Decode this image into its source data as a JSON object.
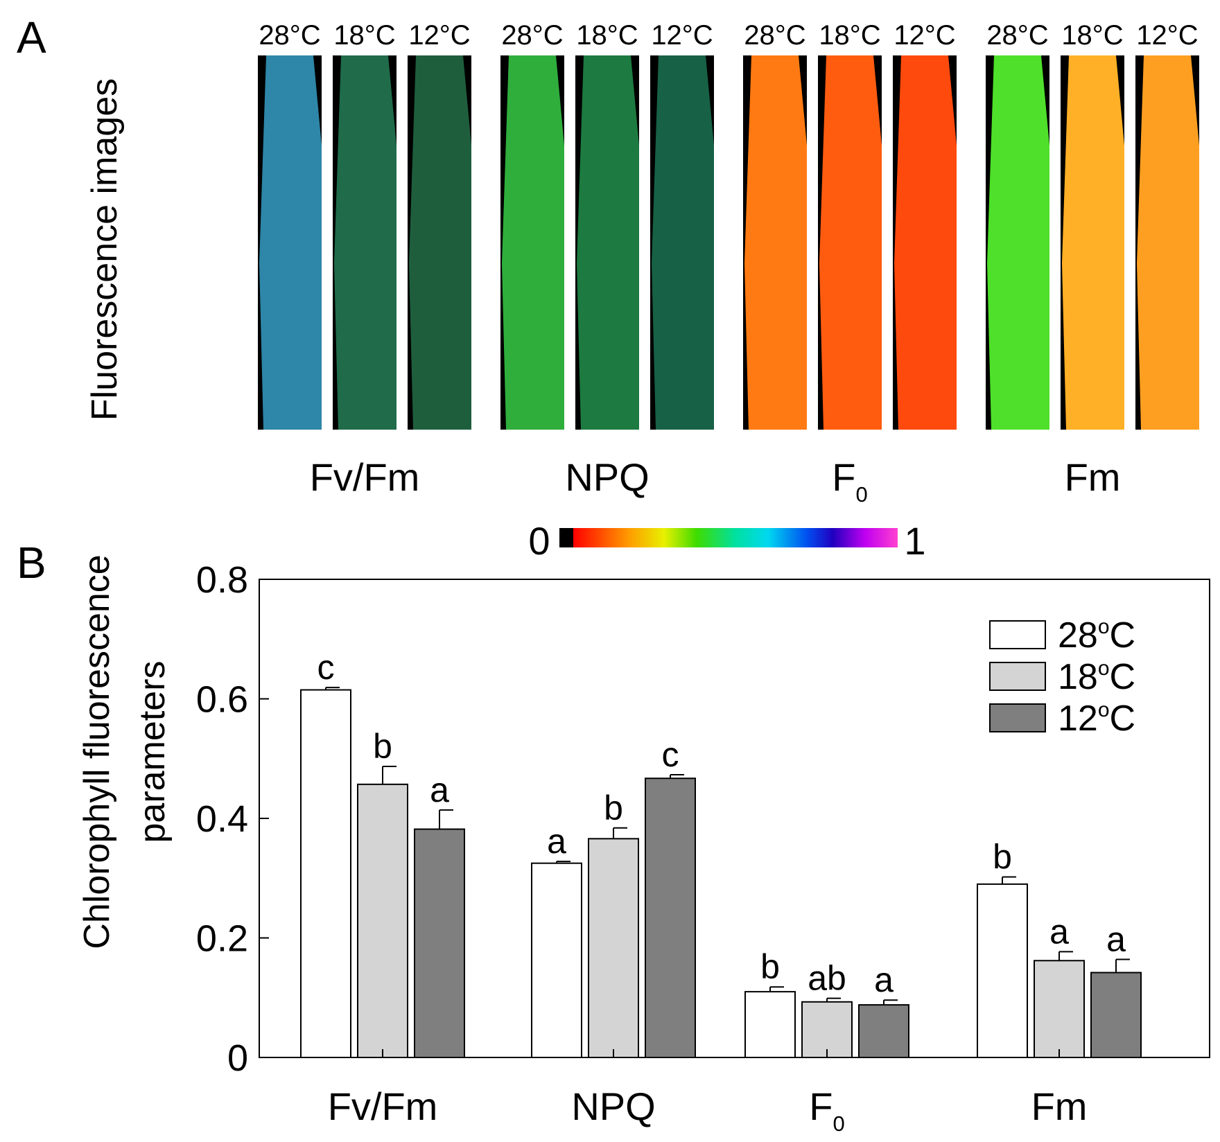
{
  "panel_a": {
    "label": "A",
    "ylabel": "Fluorescence images",
    "colorbar": {
      "min_label": "0",
      "max_label": "1"
    },
    "groups": [
      {
        "name": "Fv/Fm",
        "sub": "",
        "temps": [
          "28°C",
          "18°C",
          "12°C"
        ],
        "colors": [
          "#2e86a8",
          "#1f6b4a",
          "#1e5e3c"
        ]
      },
      {
        "name": "NPQ",
        "sub": "",
        "temps": [
          "28°C",
          "18°C",
          "12°C"
        ],
        "colors": [
          "#2fae3c",
          "#1d7a40",
          "#176146"
        ]
      },
      {
        "name": "F",
        "sub": "0",
        "temps": [
          "28°C",
          "18°C",
          "12°C"
        ],
        "colors": [
          "#ff7a12",
          "#ff5c10",
          "#ff4a0e"
        ]
      },
      {
        "name": "Fm",
        "sub": "",
        "temps": [
          "28°C",
          "18°C",
          "12°C"
        ],
        "colors": [
          "#4ee02a",
          "#ffb026",
          "#ff9f22"
        ]
      }
    ]
  },
  "panel_b": {
    "label": "B"
  },
  "chart_data": {
    "type": "bar",
    "ylabel": "Chlorophyll fluorescence parameters",
    "ylim": [
      0,
      0.8
    ],
    "yticks": [
      "0",
      "0.2",
      "0.4",
      "0.6",
      "0.8"
    ],
    "grid": false,
    "legend_position": "top-right",
    "categories": [
      {
        "name": "Fv/Fm",
        "sub": ""
      },
      {
        "name": "NPQ",
        "sub": ""
      },
      {
        "name": "F",
        "sub": "0"
      },
      {
        "name": "Fm",
        "sub": ""
      }
    ],
    "series": [
      {
        "name": "28",
        "unit_sup": "o",
        "unit": "C",
        "color": "#ffffff",
        "values": [
          0.615,
          0.325,
          0.11,
          0.29
        ],
        "errors": [
          0.004,
          0.003,
          0.008,
          0.012
        ],
        "letters": [
          "c",
          "a",
          "b",
          "b"
        ]
      },
      {
        "name": "18",
        "unit_sup": "o",
        "unit": "C",
        "color": "#d4d4d4",
        "values": [
          0.457,
          0.366,
          0.093,
          0.162
        ],
        "errors": [
          0.03,
          0.018,
          0.006,
          0.015
        ],
        "letters": [
          "b",
          "b",
          "ab",
          "a"
        ]
      },
      {
        "name": "12",
        "unit_sup": "o",
        "unit": "C",
        "color": "#7f7f7f",
        "values": [
          0.382,
          0.467,
          0.088,
          0.142
        ],
        "errors": [
          0.032,
          0.006,
          0.008,
          0.022
        ],
        "letters": [
          "a",
          "c",
          "a",
          "a"
        ]
      }
    ]
  }
}
